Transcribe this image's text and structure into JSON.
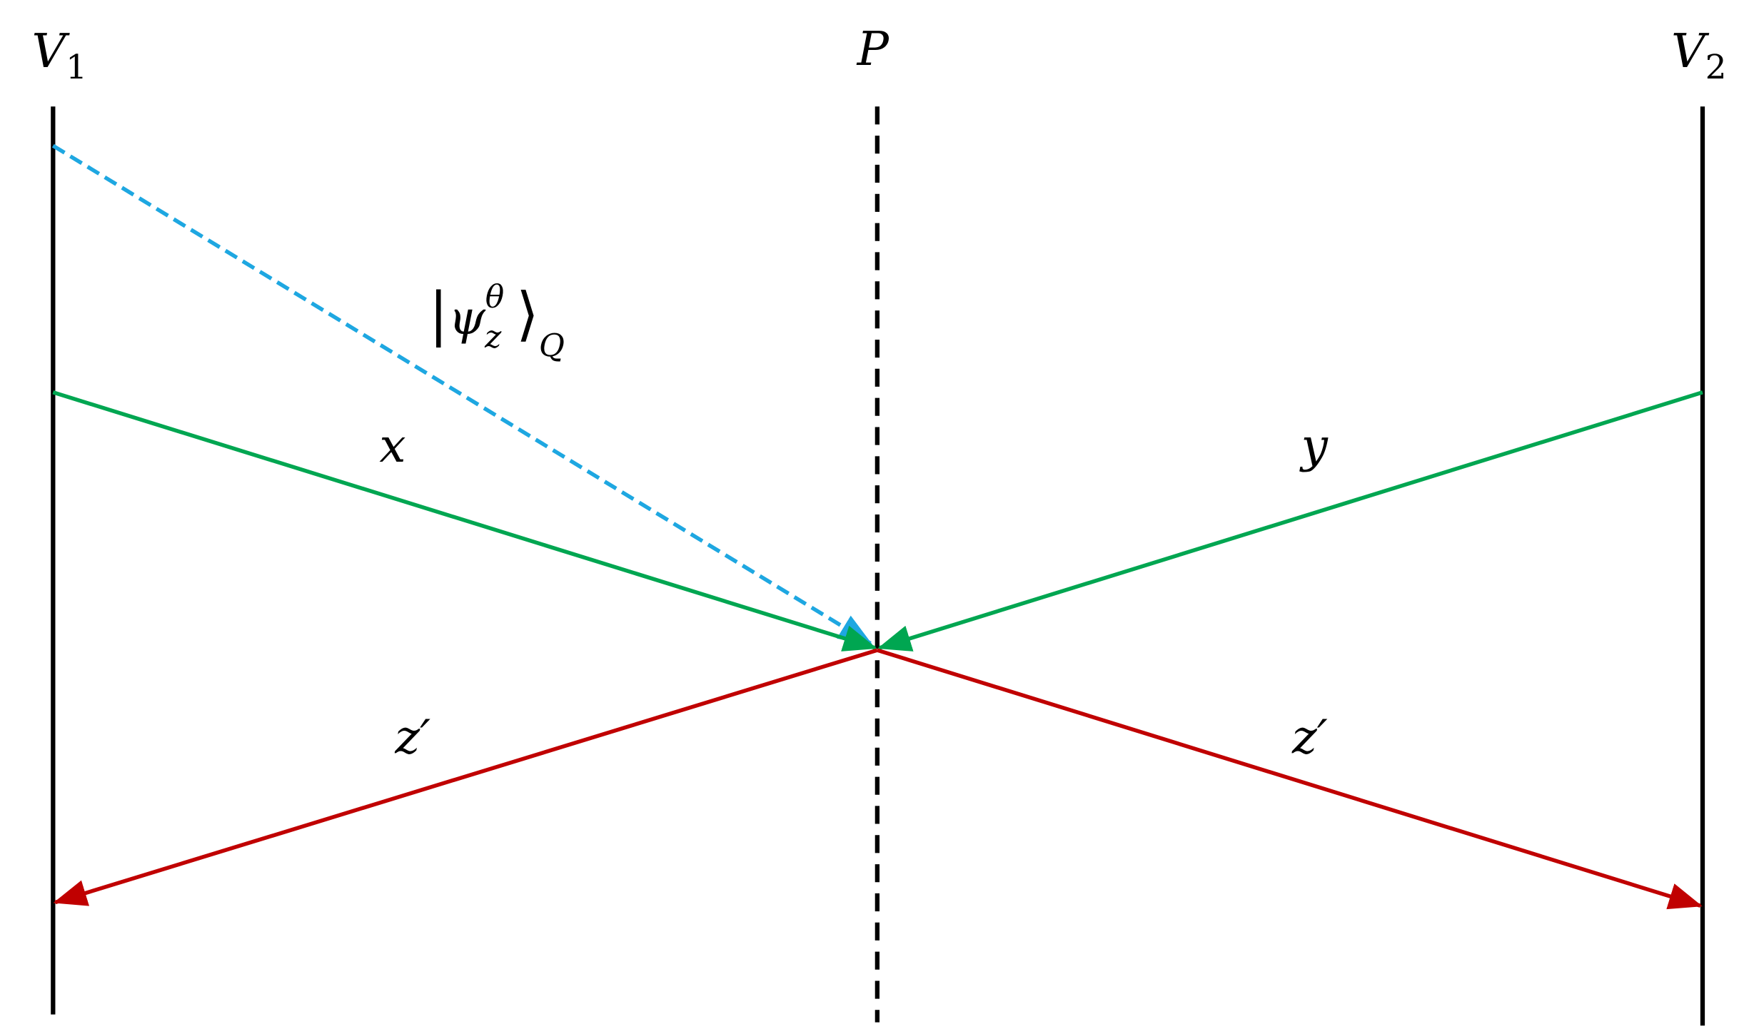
{
  "nodes": [
    {
      "label": "V",
      "subscript": "1"
    },
    {
      "label": "P"
    },
    {
      "label": "V",
      "subscript": "2"
    }
  ],
  "edges": [
    {
      "open": "|",
      "label": "ψ",
      "subscript": "z",
      "superscript": "θ",
      "close": "⟩",
      "ket_subscript": "Q"
    },
    {
      "label": "x"
    },
    {
      "label": "y"
    },
    {
      "label": "z′"
    },
    {
      "label": "z′"
    }
  ]
}
